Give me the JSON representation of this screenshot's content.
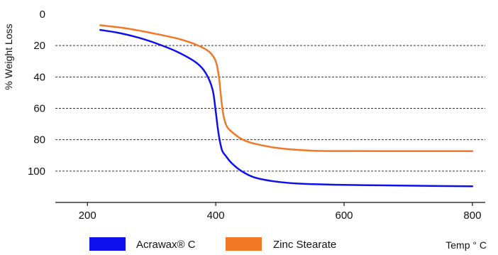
{
  "chart_data": {
    "type": "line",
    "ylabel": "% Weight Loss",
    "xlabel": "Temp ° C",
    "xlim": [
      150,
      820
    ],
    "ylim": [
      120,
      0
    ],
    "y_inverted": true,
    "x_ticks": [
      200,
      400,
      600,
      800
    ],
    "y_ticks": [
      0,
      20,
      40,
      60,
      80,
      100
    ],
    "grid": "horizontal-dashed",
    "legend_position": "bottom",
    "series": [
      {
        "name": "Acrawax® C",
        "color": "#1010ee",
        "x": [
          220,
          250,
          280,
          310,
          340,
          370,
          385,
          395,
          400,
          403,
          406,
          410,
          415,
          425,
          440,
          460,
          490,
          530,
          600,
          700,
          800
        ],
        "y": [
          10,
          12,
          15,
          19,
          24,
          31,
          38,
          48,
          62,
          72,
          80,
          87,
          90,
          95,
          100,
          104,
          106.5,
          108,
          108.8,
          109.3,
          109.7
        ]
      },
      {
        "name": "Zinc Stearate",
        "color": "#f07826",
        "x": [
          220,
          260,
          300,
          340,
          370,
          390,
          400,
          405,
          408,
          411,
          414,
          418,
          425,
          440,
          460,
          500,
          550,
          600,
          700,
          800
        ],
        "y": [
          7,
          9,
          12,
          15.5,
          19.5,
          24,
          30,
          40,
          52,
          62,
          68,
          72,
          75,
          79.5,
          82.5,
          85.5,
          87,
          87.2,
          87.3,
          87.3
        ]
      }
    ]
  }
}
